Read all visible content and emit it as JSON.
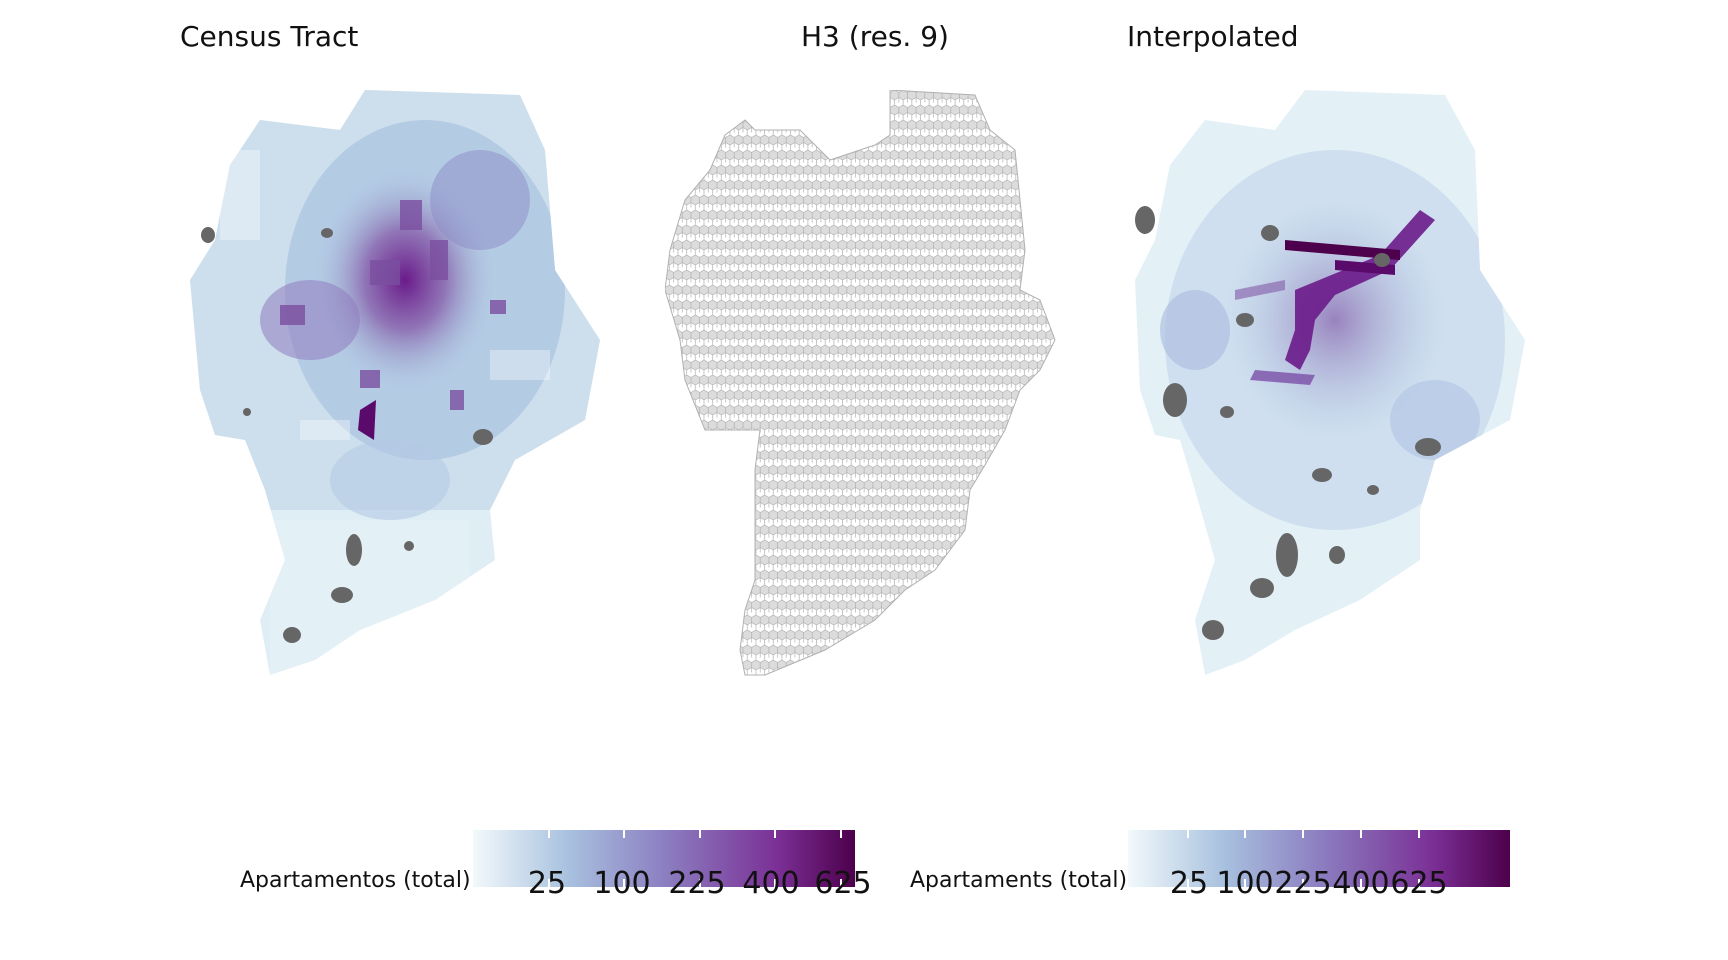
{
  "panels": [
    {
      "title": "Census Tract"
    },
    {
      "title": "H3 (res. 9)"
    },
    {
      "title": "Interpolated"
    }
  ],
  "legends": [
    {
      "title": "Apartamentos (total)",
      "ticks": [
        "25",
        "100",
        "225",
        "400",
        "625"
      ]
    },
    {
      "title": "Apartaments (total)",
      "ticks": [
        "25",
        "100",
        "225",
        "400",
        "625"
      ]
    }
  ],
  "colors": {
    "scale_low": "#f2f9fb",
    "scale_mid_low": "#a8c1df",
    "scale_mid": "#8c7fc1",
    "scale_mid_high": "#7a2f95",
    "scale_high": "#4d004b",
    "missing": "#666666",
    "h3_fill": "#dcdcdc",
    "h3_stroke": "#b0b0b0"
  }
}
